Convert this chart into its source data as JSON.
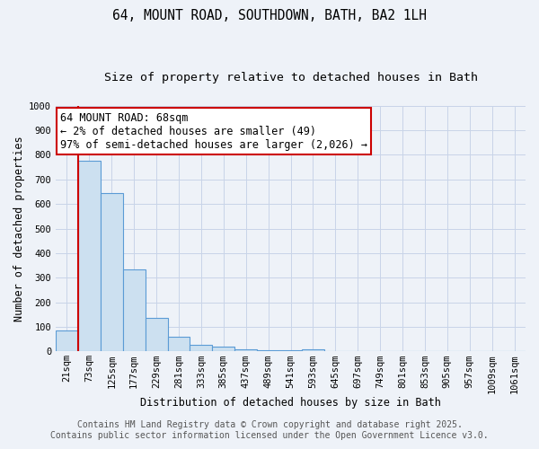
{
  "title1": "64, MOUNT ROAD, SOUTHDOWN, BATH, BA2 1LH",
  "title2": "Size of property relative to detached houses in Bath",
  "xlabel": "Distribution of detached houses by size in Bath",
  "ylabel": "Number of detached properties",
  "bar_labels": [
    "21sqm",
    "73sqm",
    "125sqm",
    "177sqm",
    "229sqm",
    "281sqm",
    "333sqm",
    "385sqm",
    "437sqm",
    "489sqm",
    "541sqm",
    "593sqm",
    "645sqm",
    "697sqm",
    "749sqm",
    "801sqm",
    "853sqm",
    "905sqm",
    "957sqm",
    "1009sqm",
    "1061sqm"
  ],
  "bar_values": [
    85,
    775,
    645,
    335,
    135,
    58,
    25,
    20,
    10,
    5,
    5,
    10,
    0,
    0,
    0,
    0,
    0,
    0,
    0,
    0,
    0
  ],
  "bar_color": "#cce0f0",
  "bar_edge_color": "#5b9bd5",
  "grid_color": "#c8d4e8",
  "annotation_text": "64 MOUNT ROAD: 68sqm\n← 2% of detached houses are smaller (49)\n97% of semi-detached houses are larger (2,026) →",
  "annotation_box_color": "#ffffff",
  "annotation_edge_color": "#cc0000",
  "vline_color": "#cc0000",
  "vline_x": 0.5,
  "ylim": [
    0,
    1000
  ],
  "yticks": [
    0,
    100,
    200,
    300,
    400,
    500,
    600,
    700,
    800,
    900,
    1000
  ],
  "footer1": "Contains HM Land Registry data © Crown copyright and database right 2025.",
  "footer2": "Contains public sector information licensed under the Open Government Licence v3.0.",
  "bg_color": "#eef2f8",
  "plot_bg_color": "#eef2f8",
  "title_fontsize": 10.5,
  "subtitle_fontsize": 9.5,
  "tick_fontsize": 7.5,
  "axis_label_fontsize": 8.5,
  "footer_fontsize": 7.0,
  "annotation_fontsize": 8.5
}
